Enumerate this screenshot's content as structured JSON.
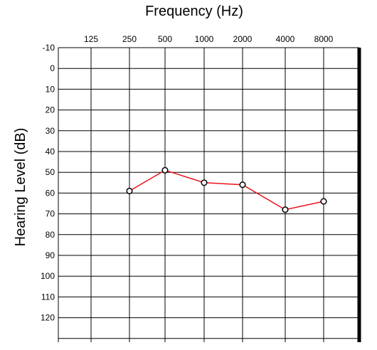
{
  "chart_data": {
    "type": "line",
    "title": "",
    "xlabel": "Frequency (Hz)",
    "ylabel": "Hearing Level (dB)",
    "x_categories": [
      "125",
      "250",
      "500",
      "1000",
      "2000",
      "4000",
      "8000"
    ],
    "y_ticks": [
      "-10",
      "0",
      "10",
      "20",
      "30",
      "40",
      "50",
      "60",
      "70",
      "80",
      "90",
      "100",
      "110",
      "120"
    ],
    "ylim": [
      -10,
      120
    ],
    "y_inverted": true,
    "grid": true,
    "series": [
      {
        "x": [
          "250",
          "500",
          "1000",
          "2000",
          "4000",
          "8000"
        ],
        "values": [
          59,
          49,
          55,
          56,
          68,
          64
        ],
        "line_color": "#e8141b",
        "marker": "open-circle",
        "marker_color": "#000000"
      }
    ]
  }
}
